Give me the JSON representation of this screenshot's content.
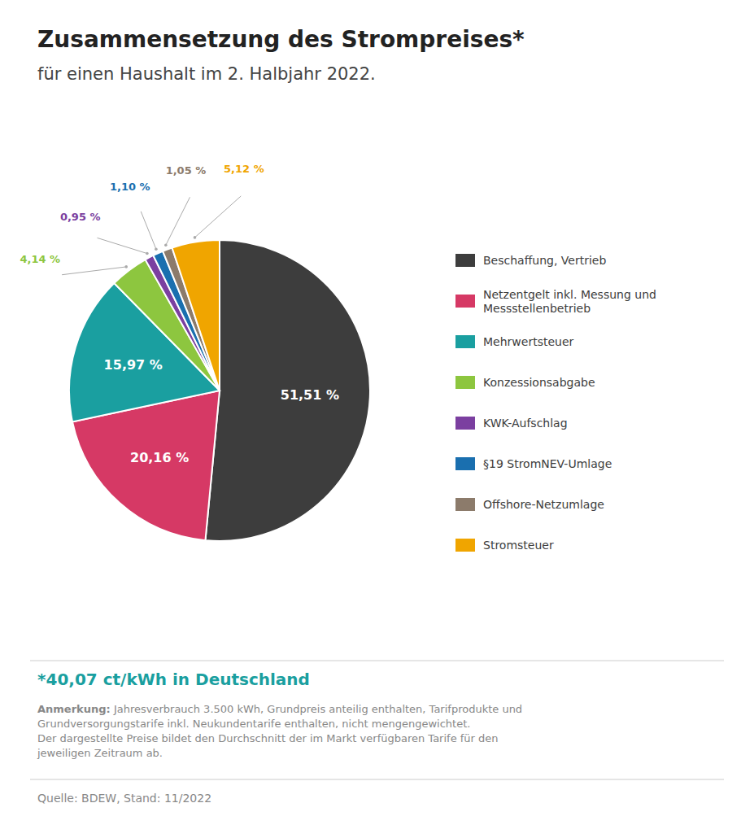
{
  "chart_data": {
    "type": "pie",
    "title": "Zusammensetzung des Strompreises*",
    "subtitle": "für einen Haushalt im 2. Halbjahr 2022.",
    "categories": [
      "Beschaffung, Vertrieb",
      "Netzentgelt inkl. Messung und Messstellenbetrieb",
      "Mehrwertsteuer",
      "Konzessionsabgabe",
      "KWK-Aufschlag",
      "§19 StromNEV-Umlage",
      "Offshore-Netzumlage",
      "Stromsteuer"
    ],
    "values": [
      51.51,
      20.16,
      15.97,
      4.14,
      0.95,
      1.1,
      1.05,
      5.12
    ],
    "value_labels": [
      "51,51 %",
      "20,16 %",
      "15,97 %",
      "4,14 %",
      "0,95 %",
      "1,10 %",
      "1,05 %",
      "5,12 %"
    ],
    "colors": [
      "#3d3d3d",
      "#d63965",
      "#1a9fa0",
      "#8dc63f",
      "#7b3fa0",
      "#1a6faf",
      "#8c7b6b",
      "#f0a500"
    ],
    "data_labels": true,
    "legend": "right",
    "annotations": [
      "*40,07 ct/kWh in Deutschland",
      "Anmerkung:",
      " Jahresverbrauch 3.500 kWh, Grundpreis anteilig enthalten, Tarifprodukte und",
      "Grundversorgungstarife inkl. Neukundentarife enthalten, nicht mengengewichtet.",
      "Der dargestellte Preise bildet den Durchschnitt der im Markt verfügbaren Tarife für den",
      "jeweiligen Zeitraum ab.",
      "Quelle: BDEW, Stand: 11/2022"
    ]
  }
}
